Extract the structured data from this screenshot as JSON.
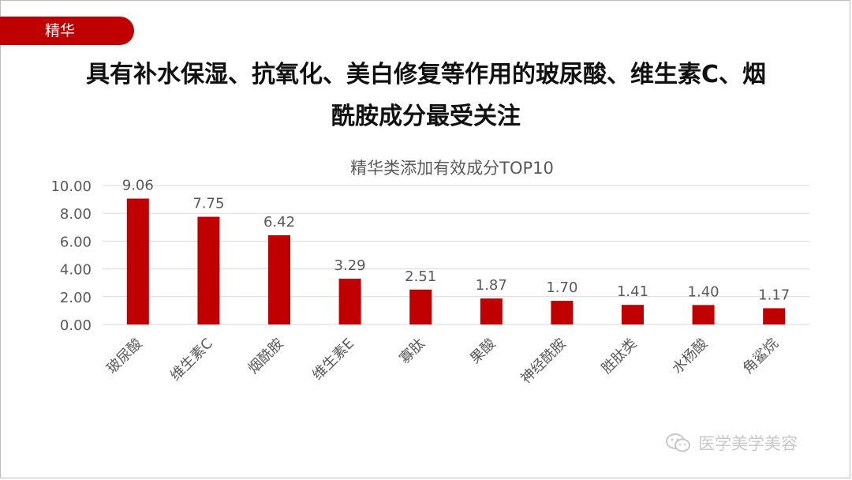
{
  "tag": {
    "label": "精华"
  },
  "headline": {
    "line1": "具有补水保湿、抗氧化、美白修复等作用的玻尿酸、维生素C、烟",
    "line2": "酰胺成分最受关注"
  },
  "watermark": {
    "text": "医学美学美容"
  },
  "colors": {
    "accent": "#c00000",
    "bar": "#c00000",
    "grid": "#d9d9d9",
    "text": "#595959"
  },
  "chart_data": {
    "type": "bar",
    "title": "精华类添加有效成分TOP10",
    "categories": [
      "玻尿酸",
      "维生素C",
      "烟酰胺",
      "维生素E",
      "寡肽",
      "果酸",
      "神经酰胺",
      "胜肽类",
      "水杨酸",
      "角鲨烷"
    ],
    "values": [
      9.06,
      7.75,
      6.42,
      3.29,
      2.51,
      1.87,
      1.7,
      1.41,
      1.4,
      1.17
    ],
    "value_labels": [
      "9.06",
      "7.75",
      "6.42",
      "3.29",
      "2.51",
      "1.87",
      "1.70",
      "1.41",
      "1.40",
      "1.17"
    ],
    "yticks": [
      "0.00",
      "2.00",
      "4.00",
      "6.00",
      "8.00",
      "10.00"
    ],
    "ylim": [
      0,
      10
    ],
    "xlabel": "",
    "ylabel": "",
    "grid": true,
    "legend": false
  }
}
